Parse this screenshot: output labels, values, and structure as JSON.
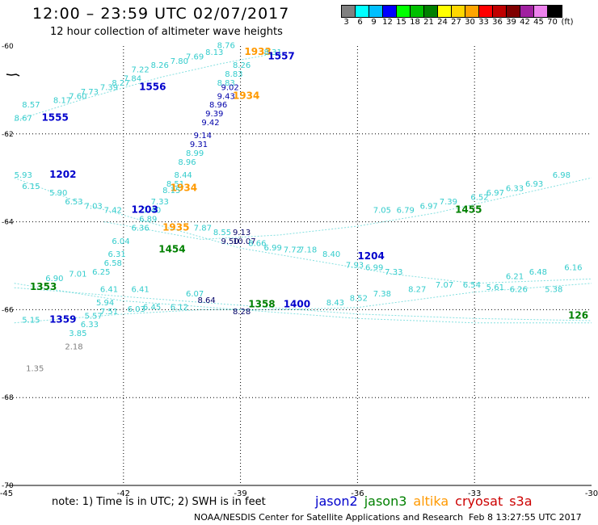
{
  "header": {
    "title": "12:00 – 23:59 UTC 02/07/2017",
    "subtitle": "12 hour collection of altimeter wave heights"
  },
  "legend": {
    "labels": [
      "3",
      "6",
      "9",
      "12",
      "15",
      "18",
      "21",
      "24",
      "27",
      "30",
      "33",
      "36",
      "39",
      "42",
      "45",
      "70"
    ],
    "unit": "(ft)",
    "colors": [
      "#808080",
      "#00ffff",
      "#00bfff",
      "#0000ff",
      "#00ff00",
      "#00c000",
      "#008000",
      "#ffff00",
      "#ffd700",
      "#ffa500",
      "#ff0000",
      "#c00000",
      "#800000",
      "#a020a0",
      "#ee82ee",
      "#000000"
    ]
  },
  "footer": {
    "note": "note:  1) Time is in UTC;  2) SWH is in feet",
    "credit": "NOAA/NESDIS Center for Satellite Applications and Research",
    "timestamp": "Feb  8 13:27:55 UTC 2017"
  },
  "satellites": [
    {
      "name": "jason2",
      "color": "#0000cc"
    },
    {
      "name": "jason3",
      "color": "#008000"
    },
    {
      "name": "altika",
      "color": "#ff9900"
    },
    {
      "name": "cryosat",
      "color": "#cc0000"
    },
    {
      "name": "s3a",
      "color": "#cc0000"
    }
  ],
  "chart_data": {
    "type": "scatter",
    "xlim": [
      -45,
      -30
    ],
    "ylim": [
      -70,
      -60
    ],
    "xticks": [
      "-45",
      "-42",
      "-39",
      "-36",
      "-33",
      "-30"
    ],
    "yticks": [
      "-60",
      "-62",
      "-64",
      "-66",
      "-68",
      "-70"
    ],
    "grid": true,
    "points": [
      {
        "lon": -39.2,
        "lat": -60.5,
        "v": "8.26",
        "c": "#33cccc"
      },
      {
        "lon": -38.9,
        "lat": -60.2,
        "v": "1933",
        "c": "#ff9900",
        "big": true
      },
      {
        "lon": -38.4,
        "lat": -60.2,
        "v": "8.31",
        "c": "#33cccc"
      },
      {
        "lon": -38.3,
        "lat": -60.3,
        "v": "1557",
        "c": "#0000cc",
        "big": true
      },
      {
        "lon": -39.4,
        "lat": -60.7,
        "v": "8.83",
        "c": "#33cccc"
      },
      {
        "lon": -39.6,
        "lat": -60.9,
        "v": "8.83",
        "c": "#33cccc"
      },
      {
        "lon": -39.2,
        "lat": -61.2,
        "v": "1934",
        "c": "#ff9900",
        "big": true
      },
      {
        "lon": -39.5,
        "lat": -61.0,
        "v": "9.02",
        "c": "#0000aa"
      },
      {
        "lon": -39.6,
        "lat": -61.2,
        "v": "9.43",
        "c": "#0000aa"
      },
      {
        "lon": -39.8,
        "lat": -61.4,
        "v": "8.96",
        "c": "#0000aa"
      },
      {
        "lon": -39.9,
        "lat": -61.6,
        "v": "9.39",
        "c": "#0000aa"
      },
      {
        "lon": -40.0,
        "lat": -61.8,
        "v": "9.42",
        "c": "#0000aa"
      },
      {
        "lon": -40.2,
        "lat": -62.1,
        "v": "9.14",
        "c": "#0000aa"
      },
      {
        "lon": -40.3,
        "lat": -62.3,
        "v": "9.31",
        "c": "#0000aa"
      },
      {
        "lon": -40.4,
        "lat": -62.5,
        "v": "8.99",
        "c": "#33cccc"
      },
      {
        "lon": -40.6,
        "lat": -62.7,
        "v": "8.96",
        "c": "#33cccc"
      },
      {
        "lon": -40.7,
        "lat": -63.0,
        "v": "8.44",
        "c": "#33cccc"
      },
      {
        "lon": -40.9,
        "lat": -63.2,
        "v": "8.51",
        "c": "#33cccc"
      },
      {
        "lon": -40.8,
        "lat": -63.3,
        "v": "1934",
        "c": "#ff9900",
        "big": true
      },
      {
        "lon": -41.0,
        "lat": -63.35,
        "v": "8.15",
        "c": "#33cccc"
      },
      {
        "lon": -41.3,
        "lat": -63.6,
        "v": "7.33",
        "c": "#33cccc"
      },
      {
        "lon": -41.5,
        "lat": -63.8,
        "v": "7.40",
        "c": "#33cccc"
      },
      {
        "lon": -41.6,
        "lat": -64.0,
        "v": "6.89",
        "c": "#33cccc"
      },
      {
        "lon": -41.8,
        "lat": -64.2,
        "v": "6.36",
        "c": "#33cccc"
      },
      {
        "lon": -41.0,
        "lat": -64.2,
        "v": "1935",
        "c": "#ff9900",
        "big": true
      },
      {
        "lon": -42.3,
        "lat": -64.5,
        "v": "6.04",
        "c": "#33cccc"
      },
      {
        "lon": -42.4,
        "lat": -64.8,
        "v": "6.31",
        "c": "#33cccc"
      },
      {
        "lon": -42.5,
        "lat": -65.0,
        "v": "6.58",
        "c": "#33cccc"
      },
      {
        "lon": -42.6,
        "lat": -65.6,
        "v": "6.41",
        "c": "#33cccc"
      },
      {
        "lon": -42.7,
        "lat": -65.9,
        "v": "5.94",
        "c": "#33cccc"
      },
      {
        "lon": -43.0,
        "lat": -66.2,
        "v": "5.57",
        "c": "#33cccc"
      },
      {
        "lon": -43.1,
        "lat": -66.4,
        "v": "6.33",
        "c": "#33cccc"
      },
      {
        "lon": -43.4,
        "lat": -66.6,
        "v": "3.85",
        "c": "#33cccc"
      },
      {
        "lon": -43.5,
        "lat": -66.9,
        "v": "2.18",
        "c": "#808080"
      },
      {
        "lon": -44.5,
        "lat": -67.4,
        "v": "1.35",
        "c": "#808080"
      },
      {
        "lon": -43.9,
        "lat": -66.3,
        "v": "1359",
        "c": "#0000cc",
        "big": true
      },
      {
        "lon": -44.6,
        "lat": -66.3,
        "v": "5.15",
        "c": "#33cccc"
      },
      {
        "lon": -44.8,
        "lat": -61.7,
        "v": "8.67",
        "c": "#33cccc"
      },
      {
        "lon": -44.1,
        "lat": -61.7,
        "v": "1555",
        "c": "#0000cc",
        "big": true
      },
      {
        "lon": -44.6,
        "lat": -61.4,
        "v": "8.57",
        "c": "#33cccc"
      },
      {
        "lon": -43.8,
        "lat": -61.3,
        "v": "8.17",
        "c": "#33cccc"
      },
      {
        "lon": -43.4,
        "lat": -61.2,
        "v": "7.60",
        "c": "#33cccc"
      },
      {
        "lon": -43.1,
        "lat": -61.1,
        "v": "7.73",
        "c": "#33cccc"
      },
      {
        "lon": -42.6,
        "lat": -61.0,
        "v": "7.39",
        "c": "#33cccc"
      },
      {
        "lon": -42.3,
        "lat": -60.9,
        "v": "8.27",
        "c": "#33cccc"
      },
      {
        "lon": -42.0,
        "lat": -60.8,
        "v": "7.84",
        "c": "#33cccc"
      },
      {
        "lon": -41.6,
        "lat": -61.0,
        "v": "1556",
        "c": "#0000cc",
        "big": true
      },
      {
        "lon": -41.8,
        "lat": -60.6,
        "v": "7.22",
        "c": "#33cccc"
      },
      {
        "lon": -41.3,
        "lat": -60.5,
        "v": "8.26",
        "c": "#33cccc"
      },
      {
        "lon": -40.8,
        "lat": -60.4,
        "v": "7.80",
        "c": "#33cccc"
      },
      {
        "lon": -40.4,
        "lat": -60.3,
        "v": "7.69",
        "c": "#33cccc"
      },
      {
        "lon": -39.9,
        "lat": -60.2,
        "v": "8.13",
        "c": "#33cccc"
      },
      {
        "lon": -39.6,
        "lat": -60.05,
        "v": "8.76",
        "c": "#33cccc"
      },
      {
        "lon": -44.8,
        "lat": -63.0,
        "v": "5.93",
        "c": "#33cccc"
      },
      {
        "lon": -43.9,
        "lat": -63.0,
        "v": "1202",
        "c": "#0000cc",
        "big": true
      },
      {
        "lon": -44.6,
        "lat": -63.25,
        "v": "6.15",
        "c": "#33cccc"
      },
      {
        "lon": -43.9,
        "lat": -63.4,
        "v": "5.90",
        "c": "#33cccc"
      },
      {
        "lon": -43.5,
        "lat": -63.6,
        "v": "6.53",
        "c": "#33cccc"
      },
      {
        "lon": -43.0,
        "lat": -63.7,
        "v": "7.03",
        "c": "#33cccc"
      },
      {
        "lon": -42.5,
        "lat": -63.8,
        "v": "7.42",
        "c": "#33cccc"
      },
      {
        "lon": -41.8,
        "lat": -63.8,
        "v": "1203",
        "c": "#0000cc",
        "big": true
      },
      {
        "lon": -39.2,
        "lat": -64.3,
        "v": "9.13",
        "c": "#000066"
      },
      {
        "lon": -40.2,
        "lat": -64.2,
        "v": "7.87",
        "c": "#33cccc"
      },
      {
        "lon": -39.7,
        "lat": -64.3,
        "v": "8.55",
        "c": "#33cccc"
      },
      {
        "lon": -39.5,
        "lat": -64.5,
        "v": "9.50",
        "c": "#000066"
      },
      {
        "lon": -39.2,
        "lat": -64.5,
        "v": "10.07",
        "c": "#000066"
      },
      {
        "lon": -38.8,
        "lat": -64.55,
        "v": "8.66",
        "c": "#33cccc"
      },
      {
        "lon": -38.4,
        "lat": -64.65,
        "v": "6.99",
        "c": "#33cccc"
      },
      {
        "lon": -37.9,
        "lat": -64.7,
        "v": "7.72",
        "c": "#33cccc"
      },
      {
        "lon": -37.5,
        "lat": -64.7,
        "v": "7.18",
        "c": "#33cccc"
      },
      {
        "lon": -36.9,
        "lat": -64.8,
        "v": "8.40",
        "c": "#33cccc"
      },
      {
        "lon": -36.0,
        "lat": -64.85,
        "v": "1204",
        "c": "#0000cc",
        "big": true
      },
      {
        "lon": -36.3,
        "lat": -65.05,
        "v": "7.93",
        "c": "#33cccc"
      },
      {
        "lon": -35.8,
        "lat": -65.1,
        "v": "6.99",
        "c": "#33cccc"
      },
      {
        "lon": -35.3,
        "lat": -65.2,
        "v": "7.33",
        "c": "#33cccc"
      },
      {
        "lon": -33.5,
        "lat": -63.8,
        "v": "1455",
        "c": "#008000",
        "big": true
      },
      {
        "lon": -35.6,
        "lat": -63.8,
        "v": "7.05",
        "c": "#33cccc"
      },
      {
        "lon": -35.0,
        "lat": -63.8,
        "v": "6.79",
        "c": "#33cccc"
      },
      {
        "lon": -34.4,
        "lat": -63.7,
        "v": "6.97",
        "c": "#33cccc"
      },
      {
        "lon": -33.9,
        "lat": -63.6,
        "v": "7.39",
        "c": "#33cccc"
      },
      {
        "lon": -33.1,
        "lat": -63.5,
        "v": "6.52",
        "c": "#33cccc"
      },
      {
        "lon": -32.7,
        "lat": -63.4,
        "v": "6.97",
        "c": "#33cccc"
      },
      {
        "lon": -32.2,
        "lat": -63.3,
        "v": "6.33",
        "c": "#33cccc"
      },
      {
        "lon": -31.7,
        "lat": -63.2,
        "v": "6.93",
        "c": "#33cccc"
      },
      {
        "lon": -31.0,
        "lat": -63.0,
        "v": "6.98",
        "c": "#33cccc"
      },
      {
        "lon": -41.1,
        "lat": -64.7,
        "v": "1454",
        "c": "#008000",
        "big": true
      },
      {
        "lon": -44.4,
        "lat": -65.55,
        "v": "1353",
        "c": "#008000",
        "big": true
      },
      {
        "lon": -44.0,
        "lat": -65.35,
        "v": "6.90",
        "c": "#33cccc"
      },
      {
        "lon": -43.4,
        "lat": -65.25,
        "v": "7.01",
        "c": "#33cccc"
      },
      {
        "lon": -42.8,
        "lat": -65.2,
        "v": "6.25",
        "c": "#33cccc"
      },
      {
        "lon": -40.1,
        "lat": -65.85,
        "v": "8.64",
        "c": "#000066"
      },
      {
        "lon": -37.9,
        "lat": -65.95,
        "v": "1400",
        "c": "#0000cc",
        "big": true
      },
      {
        "lon": -38.8,
        "lat": -65.95,
        "v": "1358",
        "c": "#008000",
        "big": true
      },
      {
        "lon": -36.8,
        "lat": -65.9,
        "v": "8.43",
        "c": "#33cccc"
      },
      {
        "lon": -36.2,
        "lat": -65.8,
        "v": "8.52",
        "c": "#33cccc"
      },
      {
        "lon": -35.6,
        "lat": -65.7,
        "v": "7.38",
        "c": "#33cccc"
      },
      {
        "lon": -34.7,
        "lat": -65.6,
        "v": "8.27",
        "c": "#33cccc"
      },
      {
        "lon": -34.0,
        "lat": -65.5,
        "v": "7.07",
        "c": "#33cccc"
      },
      {
        "lon": -33.3,
        "lat": -65.5,
        "v": "6.54",
        "c": "#33cccc"
      },
      {
        "lon": -32.2,
        "lat": -65.3,
        "v": "6.21",
        "c": "#33cccc"
      },
      {
        "lon": -31.6,
        "lat": -65.2,
        "v": "6.48",
        "c": "#33cccc"
      },
      {
        "lon": -30.7,
        "lat": -65.1,
        "v": "6.16",
        "c": "#33cccc"
      },
      {
        "lon": -32.7,
        "lat": -65.55,
        "v": "5.61",
        "c": "#33cccc"
      },
      {
        "lon": -32.1,
        "lat": -65.6,
        "v": "6.26",
        "c": "#33cccc"
      },
      {
        "lon": -31.2,
        "lat": -65.6,
        "v": "5.38",
        "c": "#33cccc"
      },
      {
        "lon": -30.6,
        "lat": -66.2,
        "v": "126",
        "c": "#008000",
        "big": true
      },
      {
        "lon": -41.5,
        "lat": -66.0,
        "v": "6.45",
        "c": "#33cccc"
      },
      {
        "lon": -40.8,
        "lat": -66.0,
        "v": "6.12",
        "c": "#33cccc"
      },
      {
        "lon": -41.9,
        "lat": -66.05,
        "v": "6.03",
        "c": "#33cccc"
      },
      {
        "lon": -42.6,
        "lat": -66.1,
        "v": "7.51",
        "c": "#33cccc"
      },
      {
        "lon": -39.2,
        "lat": -66.1,
        "v": "8.28",
        "c": "#000066"
      },
      {
        "lon": -40.4,
        "lat": -65.7,
        "v": "6.07",
        "c": "#33cccc"
      },
      {
        "lon": -41.8,
        "lat": -65.6,
        "v": "6.41",
        "c": "#33cccc"
      }
    ],
    "tracks": [
      {
        "c": "#33cccc",
        "pts": [
          [
            -44.8,
            -61.7
          ],
          [
            -43,
            -61.2
          ],
          [
            -41,
            -60.7
          ],
          [
            -39.5,
            -60.4
          ],
          [
            -38.3,
            -60.2
          ]
        ]
      },
      {
        "c": "#33cccc",
        "pts": [
          [
            -44.8,
            -63.0
          ],
          [
            -43,
            -63.6
          ],
          [
            -41,
            -64.1
          ],
          [
            -39,
            -64.6
          ],
          [
            -37,
            -64.9
          ],
          [
            -35,
            -65.2
          ],
          [
            -33,
            -65.4
          ],
          [
            -30,
            -65.3
          ]
        ]
      },
      {
        "c": "#33cccc",
        "pts": [
          [
            -42.5,
            -64.0
          ],
          [
            -40,
            -64.4
          ],
          [
            -38,
            -64.3
          ],
          [
            -36,
            -64.1
          ],
          [
            -34,
            -63.8
          ],
          [
            -32,
            -63.4
          ],
          [
            -30,
            -63.0
          ]
        ]
      },
      {
        "c": "#33cccc",
        "pts": [
          [
            -44.8,
            -65.5
          ],
          [
            -42,
            -65.7
          ],
          [
            -39,
            -65.9
          ],
          [
            -36,
            -66.1
          ],
          [
            -33,
            -66.2
          ],
          [
            -30,
            -66.25
          ]
        ]
      },
      {
        "c": "#33cccc",
        "pts": [
          [
            -44.8,
            -66.3
          ],
          [
            -42,
            -66.1
          ],
          [
            -40,
            -66.0
          ],
          [
            -38,
            -66.0
          ],
          [
            -36,
            -65.95
          ],
          [
            -33,
            -65.6
          ],
          [
            -30,
            -65.4
          ]
        ]
      },
      {
        "c": "#33cccc",
        "pts": [
          [
            -44.8,
            -65.4
          ],
          [
            -42,
            -65.8
          ],
          [
            -39,
            -66.0
          ],
          [
            -36,
            -66.2
          ],
          [
            -33,
            -66.3
          ],
          [
            -30,
            -66.3
          ]
        ]
      }
    ]
  }
}
